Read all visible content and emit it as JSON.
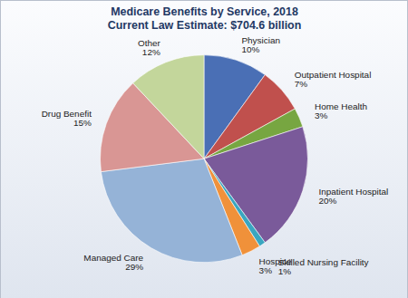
{
  "chart_data": {
    "type": "pie",
    "title": "Medicare Benefits by Service, 2018",
    "subtitle": "Current Law Estimate: $704.6 billion",
    "categories": [
      "Physician",
      "Outpatient Hospital",
      "Home Health",
      "Inpatient Hospital",
      "Skilled Nursing Facility",
      "Hospice",
      "Managed Care",
      "Drug Benefit",
      "Other"
    ],
    "values": [
      10,
      7,
      3,
      20,
      1,
      3,
      29,
      15,
      12
    ],
    "value_labels": [
      "10%",
      "7%",
      "3%",
      "20%",
      "1%",
      "3%",
      "29%",
      "15%",
      "12%"
    ],
    "colors": [
      "#4a6fb5",
      "#c0504d",
      "#77a641",
      "#7a5a9a",
      "#3aa6c0",
      "#f0913a",
      "#95b3d7",
      "#d99694",
      "#c3d69b"
    ],
    "data_labels": true
  }
}
